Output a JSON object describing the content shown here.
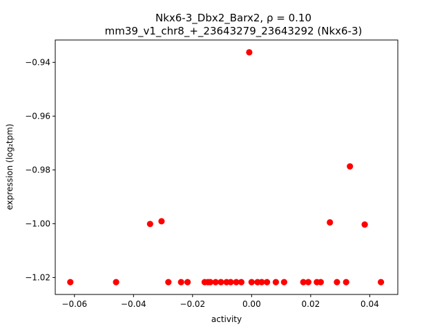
{
  "chart_data": {
    "type": "scatter",
    "title_line1": "Nkx6-3_Dbx2_Barx2, ρ = 0.10",
    "title_line2": "mm39_v1_chr8_+_23643279_23643292 (Nkx6-3)",
    "xlabel": "activity",
    "ylabel": "expression (log₂tpm)",
    "xlim": [
      -0.0665,
      0.0495
    ],
    "ylim": [
      -1.0263,
      -0.9317
    ],
    "xticks": [
      -0.06,
      -0.04,
      -0.02,
      0.0,
      0.02,
      0.04
    ],
    "xtick_labels": [
      "−0.06",
      "−0.04",
      "−0.02",
      "0.00",
      "0.02",
      "0.04"
    ],
    "yticks": [
      -0.94,
      -0.96,
      -0.98,
      -1.0,
      -1.02
    ],
    "ytick_labels": [
      "−0.94",
      "−0.96",
      "−0.98",
      "−1.00",
      "−1.02"
    ],
    "marker_color": "#ff0000",
    "points": [
      [
        -0.0614,
        -1.0217
      ],
      [
        -0.0459,
        -1.0217
      ],
      [
        -0.0344,
        -1.0001
      ],
      [
        -0.0305,
        -0.9991
      ],
      [
        -0.0282,
        -1.0217
      ],
      [
        -0.0239,
        -1.0217
      ],
      [
        -0.0217,
        -1.0217
      ],
      [
        -0.0159,
        -1.0217
      ],
      [
        -0.0148,
        -1.0217
      ],
      [
        -0.014,
        -1.0217
      ],
      [
        -0.0122,
        -1.0217
      ],
      [
        -0.0104,
        -1.0217
      ],
      [
        -0.0085,
        -1.0217
      ],
      [
        -0.0071,
        -1.0217
      ],
      [
        -0.0052,
        -1.0217
      ],
      [
        -0.0035,
        -1.0217
      ],
      [
        -0.0008,
        -0.9363
      ],
      [
        0.0,
        -1.0217
      ],
      [
        0.002,
        -1.0217
      ],
      [
        0.0034,
        -1.0217
      ],
      [
        0.0052,
        -1.0217
      ],
      [
        0.0082,
        -1.0217
      ],
      [
        0.011,
        -1.0217
      ],
      [
        0.0175,
        -1.0217
      ],
      [
        0.0192,
        -1.0217
      ],
      [
        0.0221,
        -1.0217
      ],
      [
        0.0234,
        -1.0217
      ],
      [
        0.0265,
        -0.9995
      ],
      [
        0.0289,
        -1.0217
      ],
      [
        0.032,
        -1.0217
      ],
      [
        0.0333,
        -0.9787
      ],
      [
        0.0383,
        -1.0003
      ],
      [
        0.0438,
        -1.0217
      ]
    ]
  }
}
